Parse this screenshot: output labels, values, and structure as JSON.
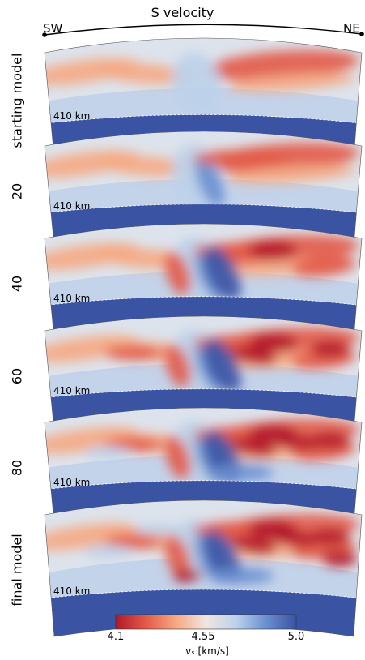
{
  "figure": {
    "title": "S velocity",
    "direction_left": "SW",
    "direction_right": "NE",
    "panels": [
      {
        "label": "starting model",
        "depth_label": "410 km",
        "detail": 0
      },
      {
        "label": "20",
        "depth_label": "410 km",
        "detail": 1
      },
      {
        "label": "40",
        "depth_label": "410 km",
        "detail": 2
      },
      {
        "label": "60",
        "depth_label": "410 km",
        "detail": 3
      },
      {
        "label": "80",
        "depth_label": "410 km",
        "detail": 4
      },
      {
        "label": "final model",
        "depth_label": "410 km",
        "detail": 5
      }
    ]
  },
  "colorbar": {
    "min": 4.1,
    "mid": 4.55,
    "max": 5.0,
    "tick_min": "4.1",
    "tick_mid": "4.55",
    "tick_max": "5.0",
    "label": "vₛ [km/s]",
    "colors": [
      "#b2182b",
      "#e35a48",
      "#f6a883",
      "#f1e6df",
      "#bcd2ea",
      "#6a8fd0",
      "#3a53a4"
    ]
  }
}
